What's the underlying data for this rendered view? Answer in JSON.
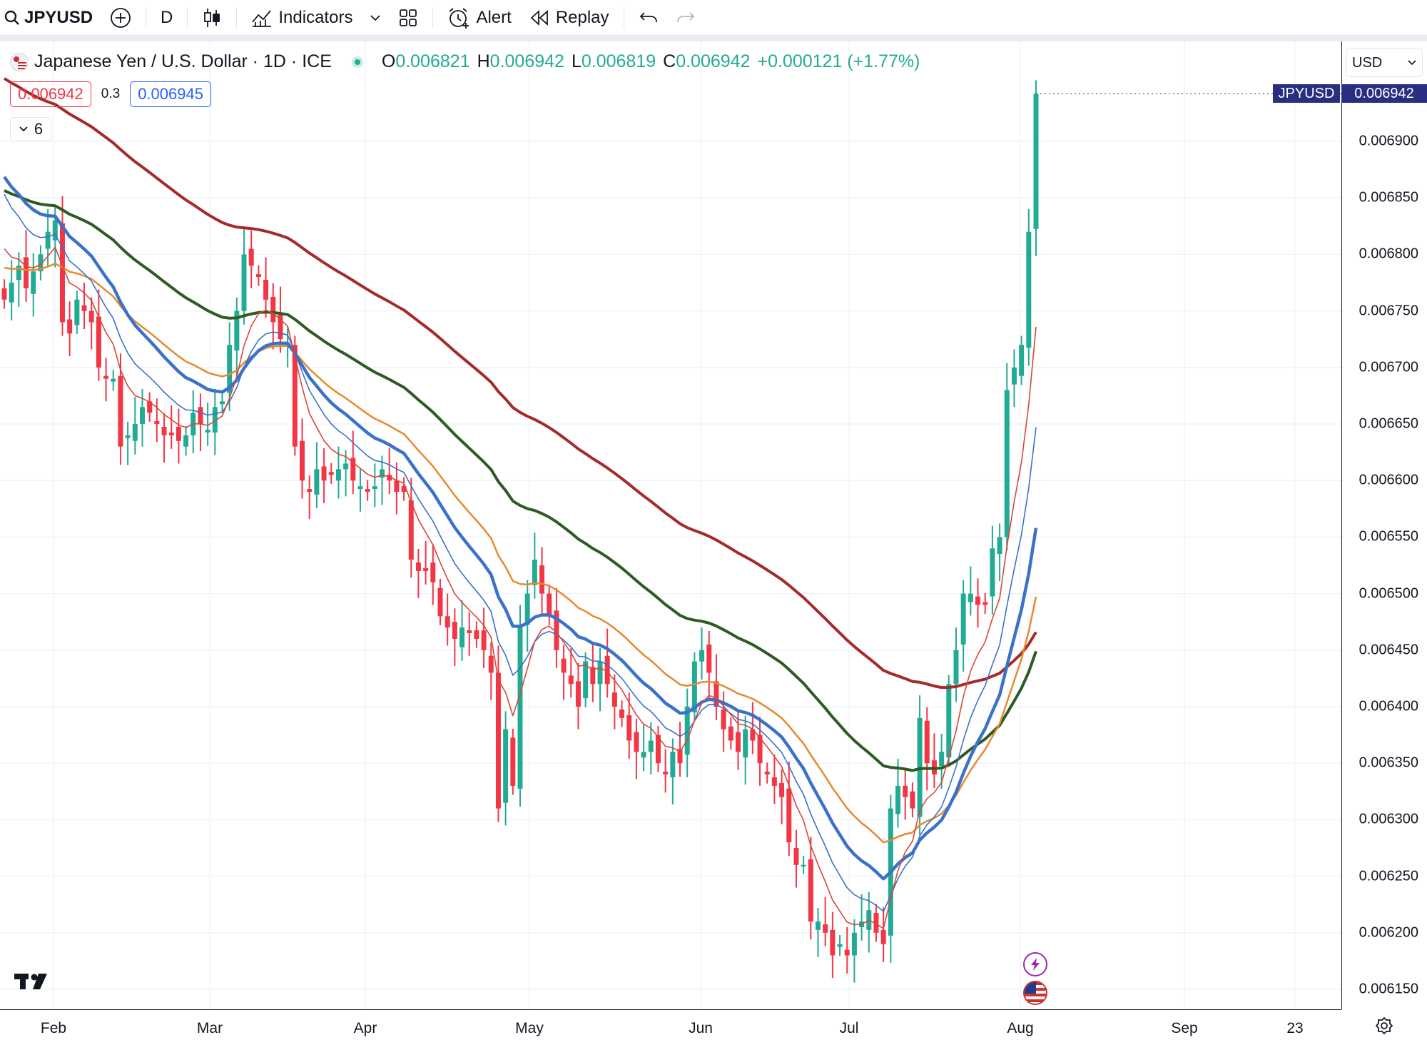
{
  "toolbar": {
    "symbol": "JPYUSD",
    "interval": "D",
    "indicators_label": "Indicators",
    "alert_label": "Alert",
    "replay_label": "Replay"
  },
  "legend": {
    "title": "Japanese Yen / U.S. Dollar · 1D · ICE",
    "open_key": "O",
    "open": "0.006821",
    "high_key": "H",
    "high": "0.006942",
    "low_key": "L",
    "low": "0.006819",
    "close_key": "C",
    "close": "0.006942",
    "change": "+0.000121 (+1.77%)"
  },
  "quote": {
    "sell": "0.006942",
    "spread": "0.3",
    "buy": "0.006945"
  },
  "collapse_count": "6",
  "currency": "USD",
  "last_price_tag": {
    "symbol": "JPYUSD",
    "price": "0.006942"
  },
  "colors": {
    "up": "#22ab94",
    "down": "#f23645",
    "ma_red": "#a52a2a",
    "ma_green": "#2e5a23",
    "ma_orange": "#e8892f",
    "ma_blue_thick": "#3b72c8",
    "ma_blue_thin": "#3b72c8",
    "ma_red_thin": "#d9463a"
  },
  "chart_data": {
    "type": "candlestick",
    "ylim": [
      0.00613,
      0.00698
    ],
    "y_ticks": [
      "0.006900",
      "0.006850",
      "0.006800",
      "0.006750",
      "0.006700",
      "0.006650",
      "0.006600",
      "0.006550",
      "0.006500",
      "0.006450",
      "0.006400",
      "0.006350",
      "0.006300",
      "0.006250",
      "0.006200",
      "0.006150"
    ],
    "x_labels": [
      "Feb",
      "Mar",
      "Apr",
      "May",
      "Jun",
      "Jul",
      "Aug",
      "Sep",
      "23"
    ],
    "candles_close": [
      0.00676,
      0.006775,
      0.00679,
      0.00677,
      0.006785,
      0.0068,
      0.00682,
      0.00683,
      0.00674,
      0.00673,
      0.00676,
      0.00675,
      0.00674,
      0.0067,
      0.00669,
      0.00669,
      0.00663,
      0.00664,
      0.00665,
      0.006665,
      0.00666,
      0.00665,
      0.00664,
      0.00664,
      0.006635,
      0.00664,
      0.00666,
      0.00665,
      0.006645,
      0.006665,
      0.00667,
      0.00672,
      0.00675,
      0.0068,
      0.00679,
      0.00678,
      0.00676,
      0.00674,
      0.006725,
      0.00672,
      0.00663,
      0.0066,
      0.00659,
      0.00661,
      0.0066,
      0.006605,
      0.00661,
      0.006615,
      0.0066,
      0.006595,
      0.00659,
      0.006595,
      0.00661,
      0.0066,
      0.00659,
      0.00659,
      0.00653,
      0.00652,
      0.00652,
      0.00651,
      0.00648,
      0.00647,
      0.00646,
      0.00647,
      0.006465,
      0.00646,
      0.00645,
      0.00643,
      0.00631,
      0.00638,
      0.00633,
      0.00647,
      0.0065,
      0.00653,
      0.0065,
      0.00648,
      0.00645,
      0.00643,
      0.00642,
      0.0064,
      0.00644,
      0.00642,
      0.00644,
      0.00642,
      0.0064,
      0.00639,
      0.00637,
      0.00636,
      0.00636,
      0.00637,
      0.00635,
      0.00634,
      0.00636,
      0.00635,
      0.0064,
      0.00644,
      0.00645,
      0.00643,
      0.0064,
      0.00638,
      0.00637,
      0.00636,
      0.00638,
      0.00637,
      0.00635,
      0.00634,
      0.00633,
      0.00632,
      0.00628,
      0.00626,
      0.00626,
      0.00621,
      0.00621,
      0.0062,
      0.00618,
      0.00619,
      0.00618,
      0.0062,
      0.00621,
      0.00622,
      0.0062,
      0.00619,
      0.00631,
      0.00633,
      0.00632,
      0.00631,
      0.00639,
      0.00635,
      0.00634,
      0.00636,
      0.00642,
      0.00645,
      0.0065,
      0.0065,
      0.00649,
      0.00649,
      0.00654,
      0.00655,
      0.00668,
      0.0067,
      0.00672,
      0.00682,
      0.006942
    ]
  }
}
